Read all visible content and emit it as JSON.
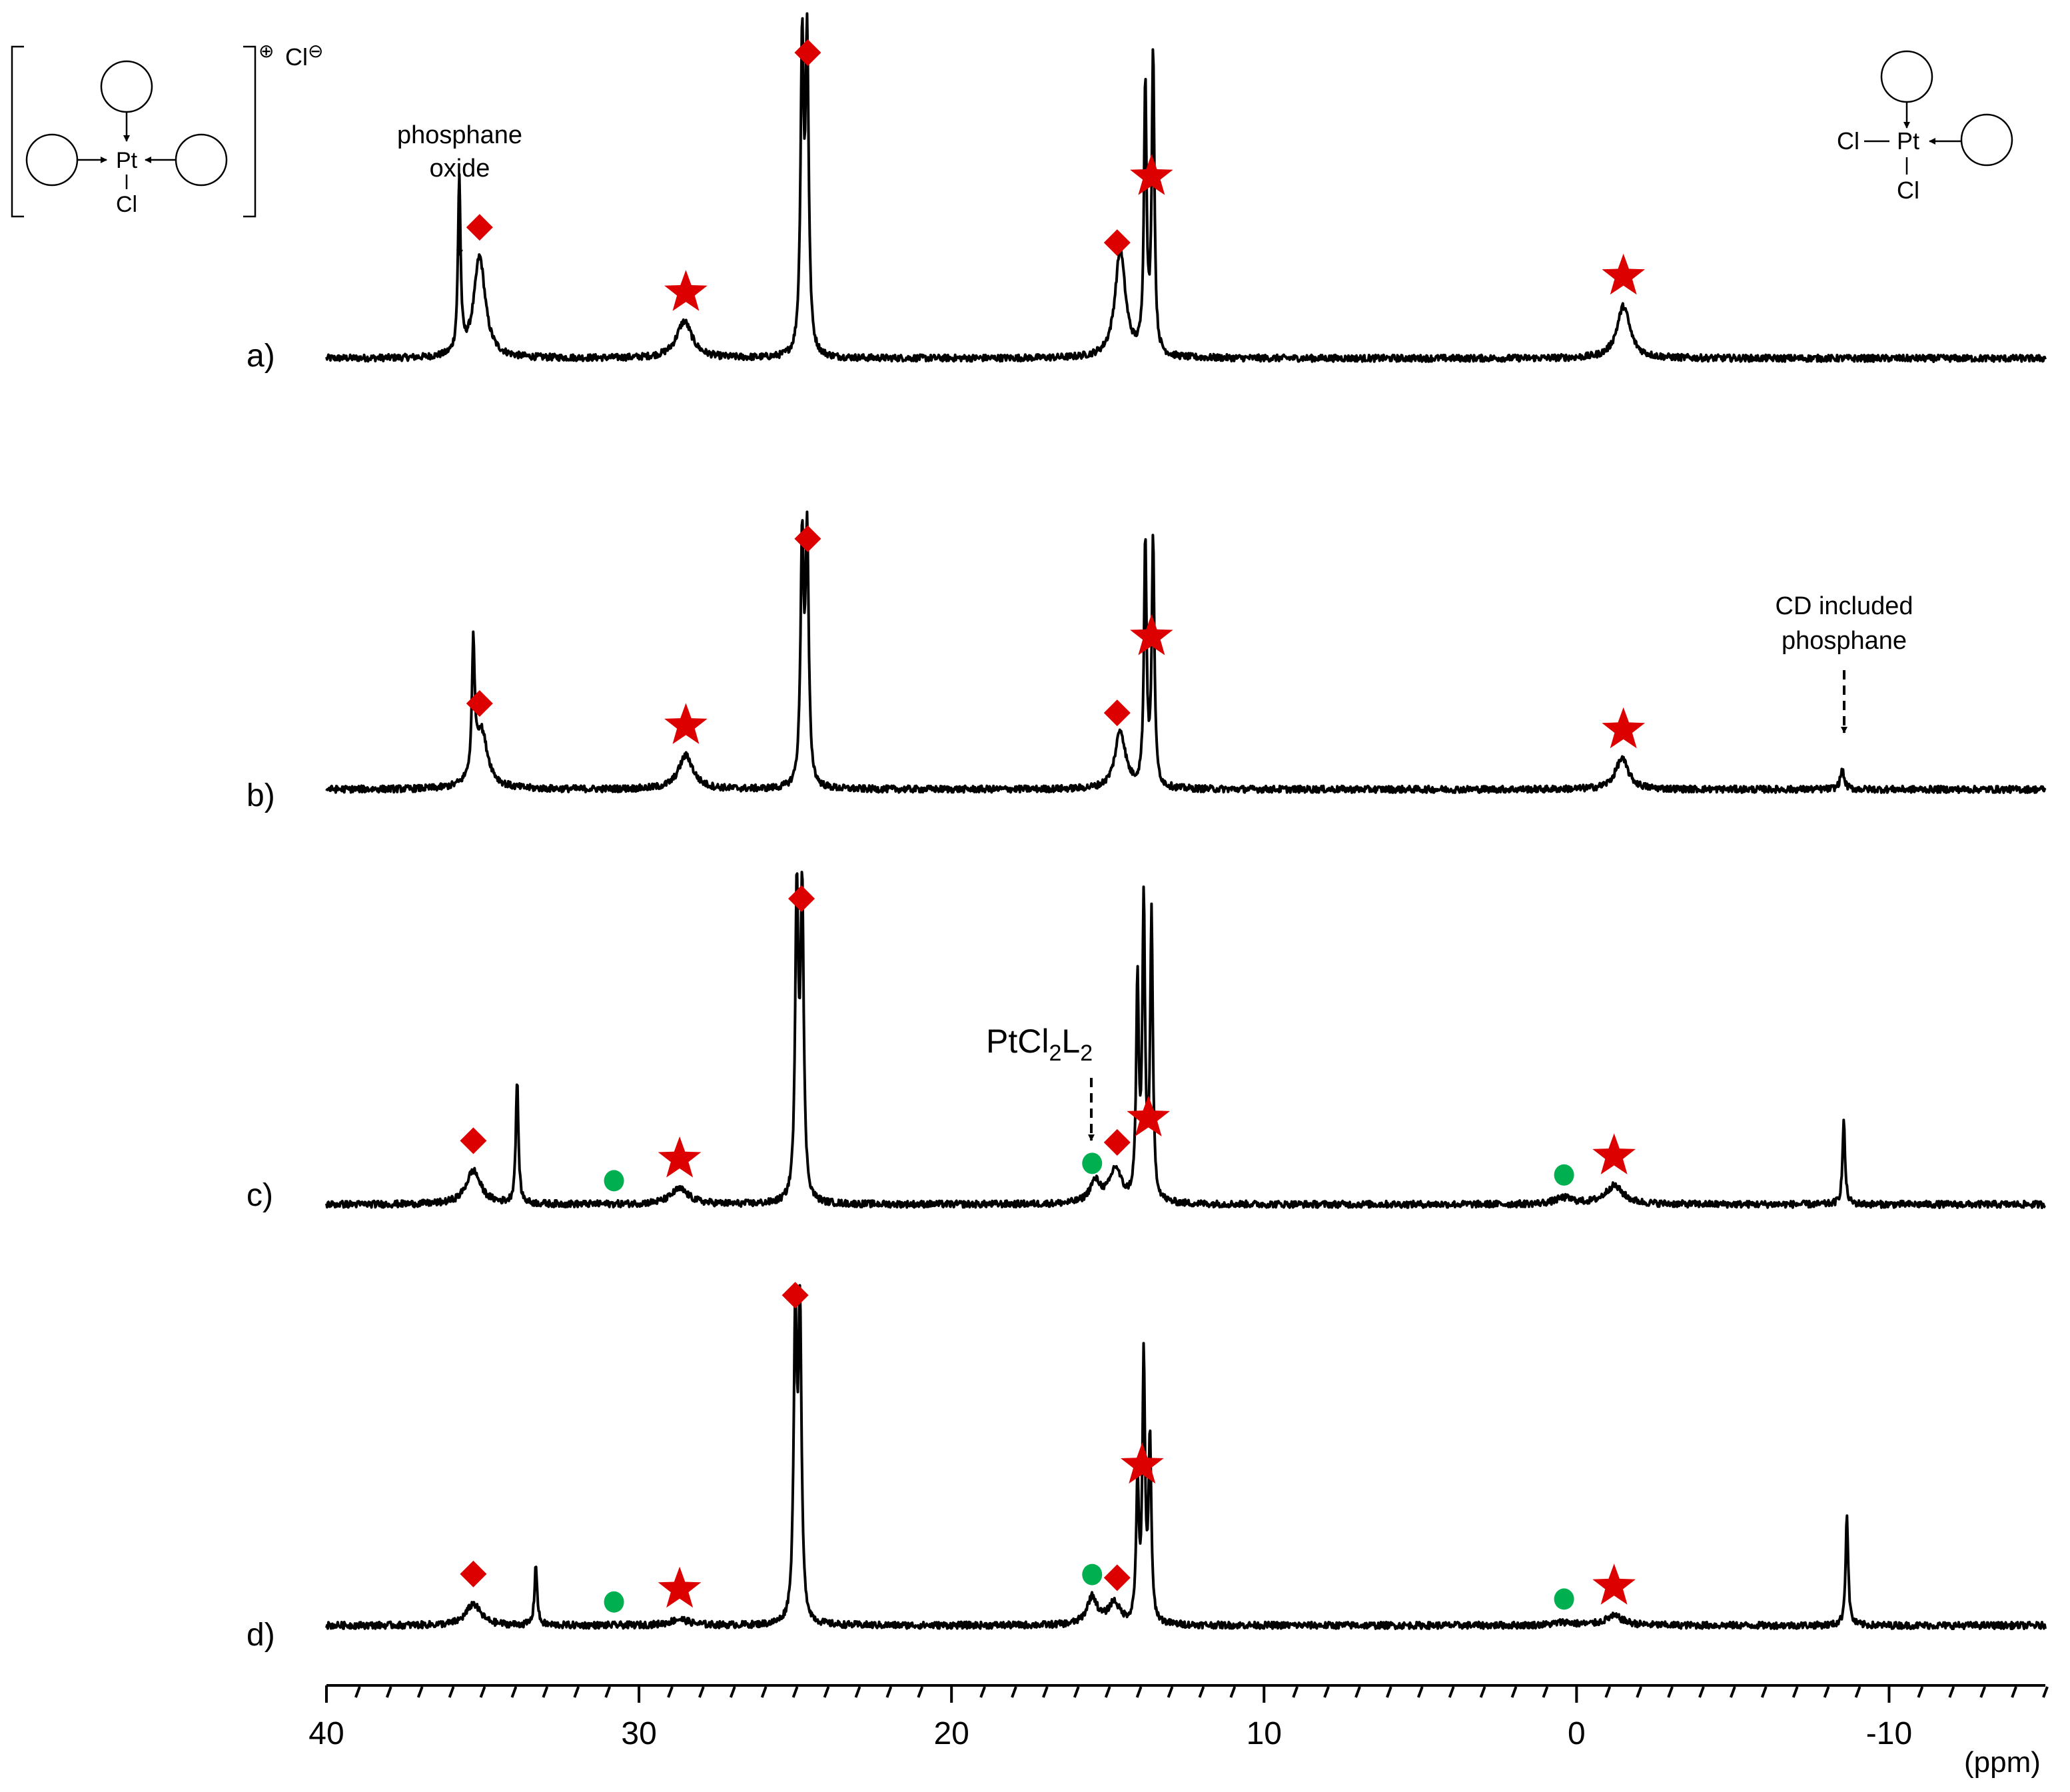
{
  "colors": {
    "diamond": "#dd0000",
    "star": "#dd0000",
    "dot": "#00b050",
    "trace": "#000000",
    "background": "#ffffff"
  },
  "structures": {
    "cation": {
      "metal": "Pt",
      "ligand": "Cl",
      "charge": "⊕",
      "counter_ion": "Cl",
      "counter_charge": "⊖"
    },
    "neutral": {
      "metal": "Pt",
      "ligand_left": "Cl",
      "ligand_bottom": "Cl"
    }
  },
  "annotations": {
    "phosphane_oxide": [
      "phosphane",
      "oxide"
    ],
    "cd_included": [
      "CD included",
      "phosphane"
    ],
    "ptcl2l2": {
      "base": "PtCl",
      "sub1": "2",
      "mid": "L",
      "sub2": "2"
    }
  },
  "chart_data": {
    "type": "line",
    "title": "",
    "xlabel": "(ppm)",
    "ylabel": "",
    "xlim": [
      40,
      -15
    ],
    "x_ticks": [
      40,
      30,
      20,
      10,
      0,
      -10
    ],
    "x_tick_labels": [
      "40",
      "30",
      "20",
      "10",
      "0",
      "-10"
    ],
    "x_minor_step": 1,
    "grid": false,
    "legend": "none",
    "series": [
      {
        "name": "a)",
        "peaks": [
          {
            "ppm": 35.75,
            "height": 0.57,
            "width": 0.05
          },
          {
            "ppm": 35.1,
            "height": 0.33,
            "width": 0.22
          },
          {
            "ppm": 28.55,
            "height": 0.12,
            "width": 0.3
          },
          {
            "ppm": 24.78,
            "height": 1.0,
            "width": 0.06
          },
          {
            "ppm": 24.62,
            "height": 1.0,
            "width": 0.06
          },
          {
            "ppm": 14.6,
            "height": 0.35,
            "width": 0.2
          },
          {
            "ppm": 13.8,
            "height": 0.88,
            "width": 0.05
          },
          {
            "ppm": 13.55,
            "height": 0.99,
            "width": 0.05
          },
          {
            "ppm": -1.5,
            "height": 0.17,
            "width": 0.25
          }
        ],
        "markers": [
          {
            "ppm": 35.1,
            "symbol": "diamond"
          },
          {
            "ppm": 28.5,
            "symbol": "star"
          },
          {
            "ppm": 24.6,
            "symbol": "diamond"
          },
          {
            "ppm": 14.7,
            "symbol": "diamond"
          },
          {
            "ppm": 13.6,
            "symbol": "star"
          },
          {
            "ppm": -1.5,
            "symbol": "star"
          }
        ]
      },
      {
        "name": "b)",
        "peaks": [
          {
            "ppm": 35.3,
            "height": 0.42,
            "width": 0.05
          },
          {
            "ppm": 35.05,
            "height": 0.19,
            "width": 0.25
          },
          {
            "ppm": 28.5,
            "height": 0.11,
            "width": 0.28
          },
          {
            "ppm": 24.78,
            "height": 0.8,
            "width": 0.06
          },
          {
            "ppm": 24.62,
            "height": 0.8,
            "width": 0.06
          },
          {
            "ppm": 14.6,
            "height": 0.19,
            "width": 0.2
          },
          {
            "ppm": 13.8,
            "height": 0.8,
            "width": 0.05
          },
          {
            "ppm": 13.55,
            "height": 0.8,
            "width": 0.05
          },
          {
            "ppm": -1.45,
            "height": 0.1,
            "width": 0.25
          },
          {
            "ppm": -8.5,
            "height": 0.06,
            "width": 0.08
          }
        ],
        "markers": [
          {
            "ppm": 35.1,
            "symbol": "diamond"
          },
          {
            "ppm": 28.5,
            "symbol": "star"
          },
          {
            "ppm": 24.6,
            "symbol": "diamond"
          },
          {
            "ppm": 14.7,
            "symbol": "diamond"
          },
          {
            "ppm": 13.6,
            "symbol": "star"
          },
          {
            "ppm": -1.5,
            "symbol": "star"
          }
        ]
      },
      {
        "name": "c)",
        "peaks": [
          {
            "ppm": 35.3,
            "height": 0.11,
            "width": 0.28
          },
          {
            "ppm": 33.9,
            "height": 0.4,
            "width": 0.05
          },
          {
            "ppm": 28.7,
            "height": 0.05,
            "width": 0.35
          },
          {
            "ppm": 24.95,
            "height": 1.0,
            "width": 0.06
          },
          {
            "ppm": 24.78,
            "height": 1.0,
            "width": 0.06
          },
          {
            "ppm": 15.4,
            "height": 0.07,
            "width": 0.22
          },
          {
            "ppm": 14.75,
            "height": 0.11,
            "width": 0.22
          },
          {
            "ppm": 14.05,
            "height": 0.7,
            "width": 0.05
          },
          {
            "ppm": 13.85,
            "height": 0.96,
            "width": 0.05
          },
          {
            "ppm": 13.6,
            "height": 0.92,
            "width": 0.05
          },
          {
            "ppm": 0.4,
            "height": 0.02,
            "width": 0.35
          },
          {
            "ppm": -1.2,
            "height": 0.06,
            "width": 0.35
          },
          {
            "ppm": -8.55,
            "height": 0.27,
            "width": 0.05
          }
        ],
        "markers": [
          {
            "ppm": 35.3,
            "symbol": "diamond"
          },
          {
            "ppm": 30.8,
            "symbol": "dot"
          },
          {
            "ppm": 28.7,
            "symbol": "star"
          },
          {
            "ppm": 24.8,
            "symbol": "diamond"
          },
          {
            "ppm": 15.5,
            "symbol": "dot"
          },
          {
            "ppm": 14.7,
            "symbol": "diamond"
          },
          {
            "ppm": 13.7,
            "symbol": "star"
          },
          {
            "ppm": 0.4,
            "symbol": "dot"
          },
          {
            "ppm": -1.2,
            "symbol": "star"
          }
        ]
      },
      {
        "name": "d)",
        "peaks": [
          {
            "ppm": 35.3,
            "height": 0.07,
            "width": 0.28
          },
          {
            "ppm": 33.3,
            "height": 0.2,
            "width": 0.05
          },
          {
            "ppm": 28.7,
            "height": 0.02,
            "width": 0.35
          },
          {
            "ppm": 25.0,
            "height": 0.98,
            "width": 0.06
          },
          {
            "ppm": 24.85,
            "height": 0.98,
            "width": 0.06
          },
          {
            "ppm": 15.5,
            "height": 0.09,
            "width": 0.2
          },
          {
            "ppm": 14.8,
            "height": 0.07,
            "width": 0.22
          },
          {
            "ppm": 14.05,
            "height": 0.45,
            "width": 0.05
          },
          {
            "ppm": 13.85,
            "height": 0.85,
            "width": 0.05
          },
          {
            "ppm": 13.65,
            "height": 0.6,
            "width": 0.05
          },
          {
            "ppm": 0.4,
            "height": 0.01,
            "width": 0.35
          },
          {
            "ppm": -1.2,
            "height": 0.03,
            "width": 0.35
          },
          {
            "ppm": -8.65,
            "height": 0.36,
            "width": 0.05
          }
        ],
        "markers": [
          {
            "ppm": 35.3,
            "symbol": "diamond"
          },
          {
            "ppm": 30.8,
            "symbol": "dot"
          },
          {
            "ppm": 28.7,
            "symbol": "star"
          },
          {
            "ppm": 25.0,
            "symbol": "diamond"
          },
          {
            "ppm": 15.5,
            "symbol": "dot"
          },
          {
            "ppm": 14.7,
            "symbol": "diamond"
          },
          {
            "ppm": 13.9,
            "symbol": "star"
          },
          {
            "ppm": 0.4,
            "symbol": "dot"
          },
          {
            "ppm": -1.2,
            "symbol": "star"
          }
        ]
      }
    ]
  }
}
